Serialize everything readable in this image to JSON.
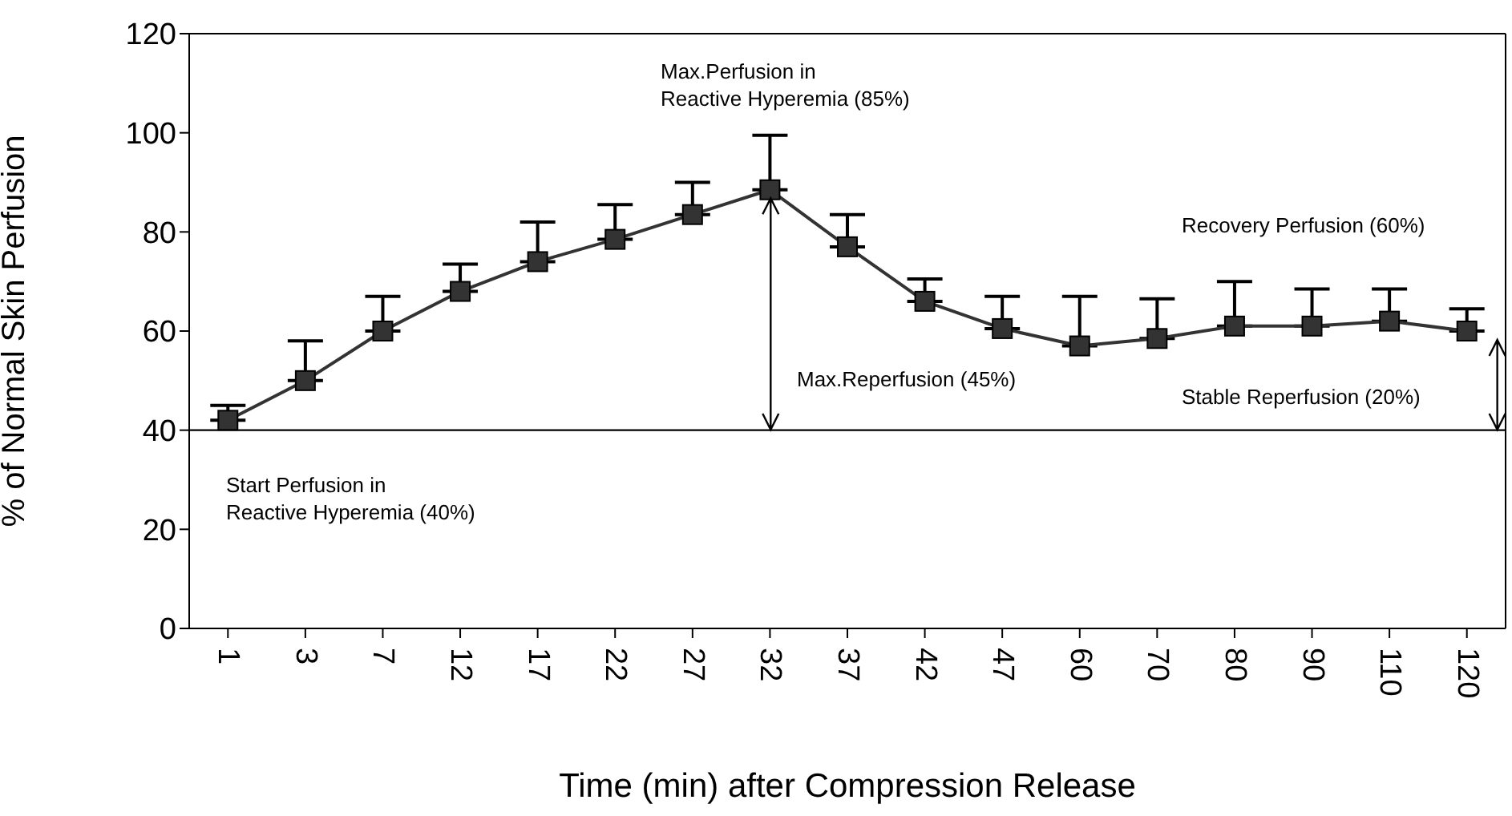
{
  "chart_data": {
    "type": "line",
    "xlabel": "Time (min) after Compression Release",
    "ylabel": "% of Normal Skin Perfusion",
    "categories": [
      "1",
      "3",
      "7",
      "12",
      "17",
      "22",
      "27",
      "32",
      "37",
      "42",
      "47",
      "60",
      "70",
      "80",
      "90",
      "110",
      "120"
    ],
    "series": [
      {
        "color": "#333333",
        "values": [
          42,
          50,
          60,
          68,
          74,
          78.5,
          83.5,
          88.5,
          77,
          66,
          60.5,
          57,
          58.5,
          61,
          61,
          62,
          60
        ],
        "errors": [
          [
            42,
            45
          ],
          [
            50,
            58
          ],
          [
            60,
            67
          ],
          [
            68,
            73.5
          ],
          [
            74,
            82
          ],
          [
            78.5,
            85.5
          ],
          [
            83.5,
            90
          ],
          [
            88.5,
            99.5
          ],
          [
            77,
            83.5
          ],
          [
            66,
            70.5
          ],
          [
            60.5,
            67
          ],
          [
            57,
            67
          ],
          [
            58.5,
            66.5
          ],
          [
            61,
            70
          ],
          [
            61,
            68.5
          ],
          [
            62,
            68.5
          ],
          [
            60,
            64.5
          ]
        ]
      }
    ],
    "ylim": [
      0,
      120
    ],
    "yticks": [
      0,
      20,
      40,
      60,
      80,
      100,
      120
    ],
    "marker": "square",
    "line_style": "solid",
    "ref_lines": [
      {
        "axis": "y",
        "value": 40,
        "color": "#000000"
      }
    ],
    "annotations": [
      "Max.Perfusion in\nReactive Hyperemia (85%)",
      "Recovery Perfusion (60%)",
      "Max.Reperfusion (45%)",
      "Stable Reperfusion (20%)",
      "Start Perfusion in\nReactive Hyperemia (40%)"
    ]
  }
}
